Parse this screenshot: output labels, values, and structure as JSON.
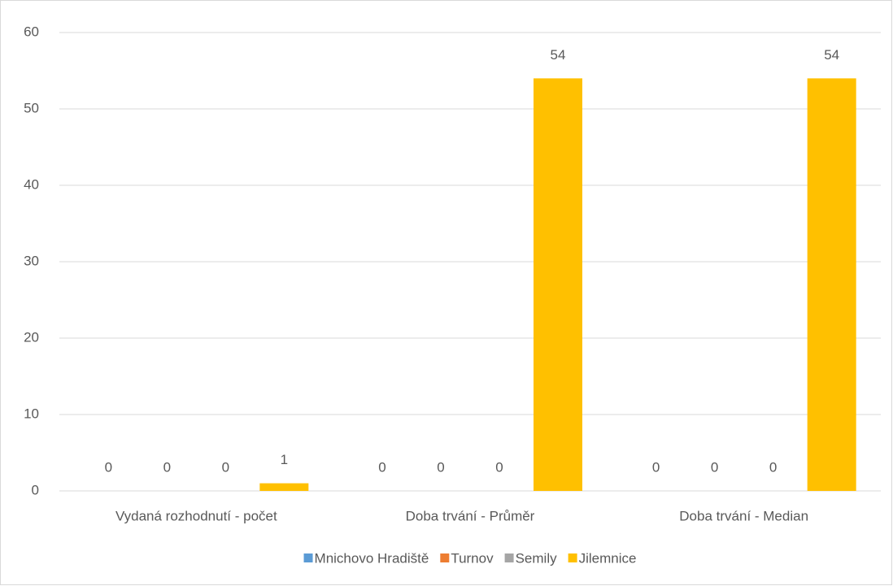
{
  "chart_data": {
    "type": "bar",
    "categories": [
      "Vydaná rozhodnutí - počet",
      "Doba trvání - Průměr",
      "Doba trvání - Median"
    ],
    "series": [
      {
        "name": "Mnichovo Hradiště",
        "color": "#5b9bd5",
        "values": [
          0,
          0,
          0
        ]
      },
      {
        "name": "Turnov",
        "color": "#ed7d31",
        "values": [
          0,
          0,
          0
        ]
      },
      {
        "name": "Semily",
        "color": "#a5a5a5",
        "values": [
          0,
          0,
          0
        ]
      },
      {
        "name": "Jilemnice",
        "color": "#ffc000",
        "values": [
          1,
          54,
          54
        ]
      }
    ],
    "ylim": [
      0,
      60
    ],
    "yticks": [
      0,
      10,
      20,
      30,
      40,
      50,
      60
    ],
    "grid": true,
    "legend": "bottom"
  }
}
